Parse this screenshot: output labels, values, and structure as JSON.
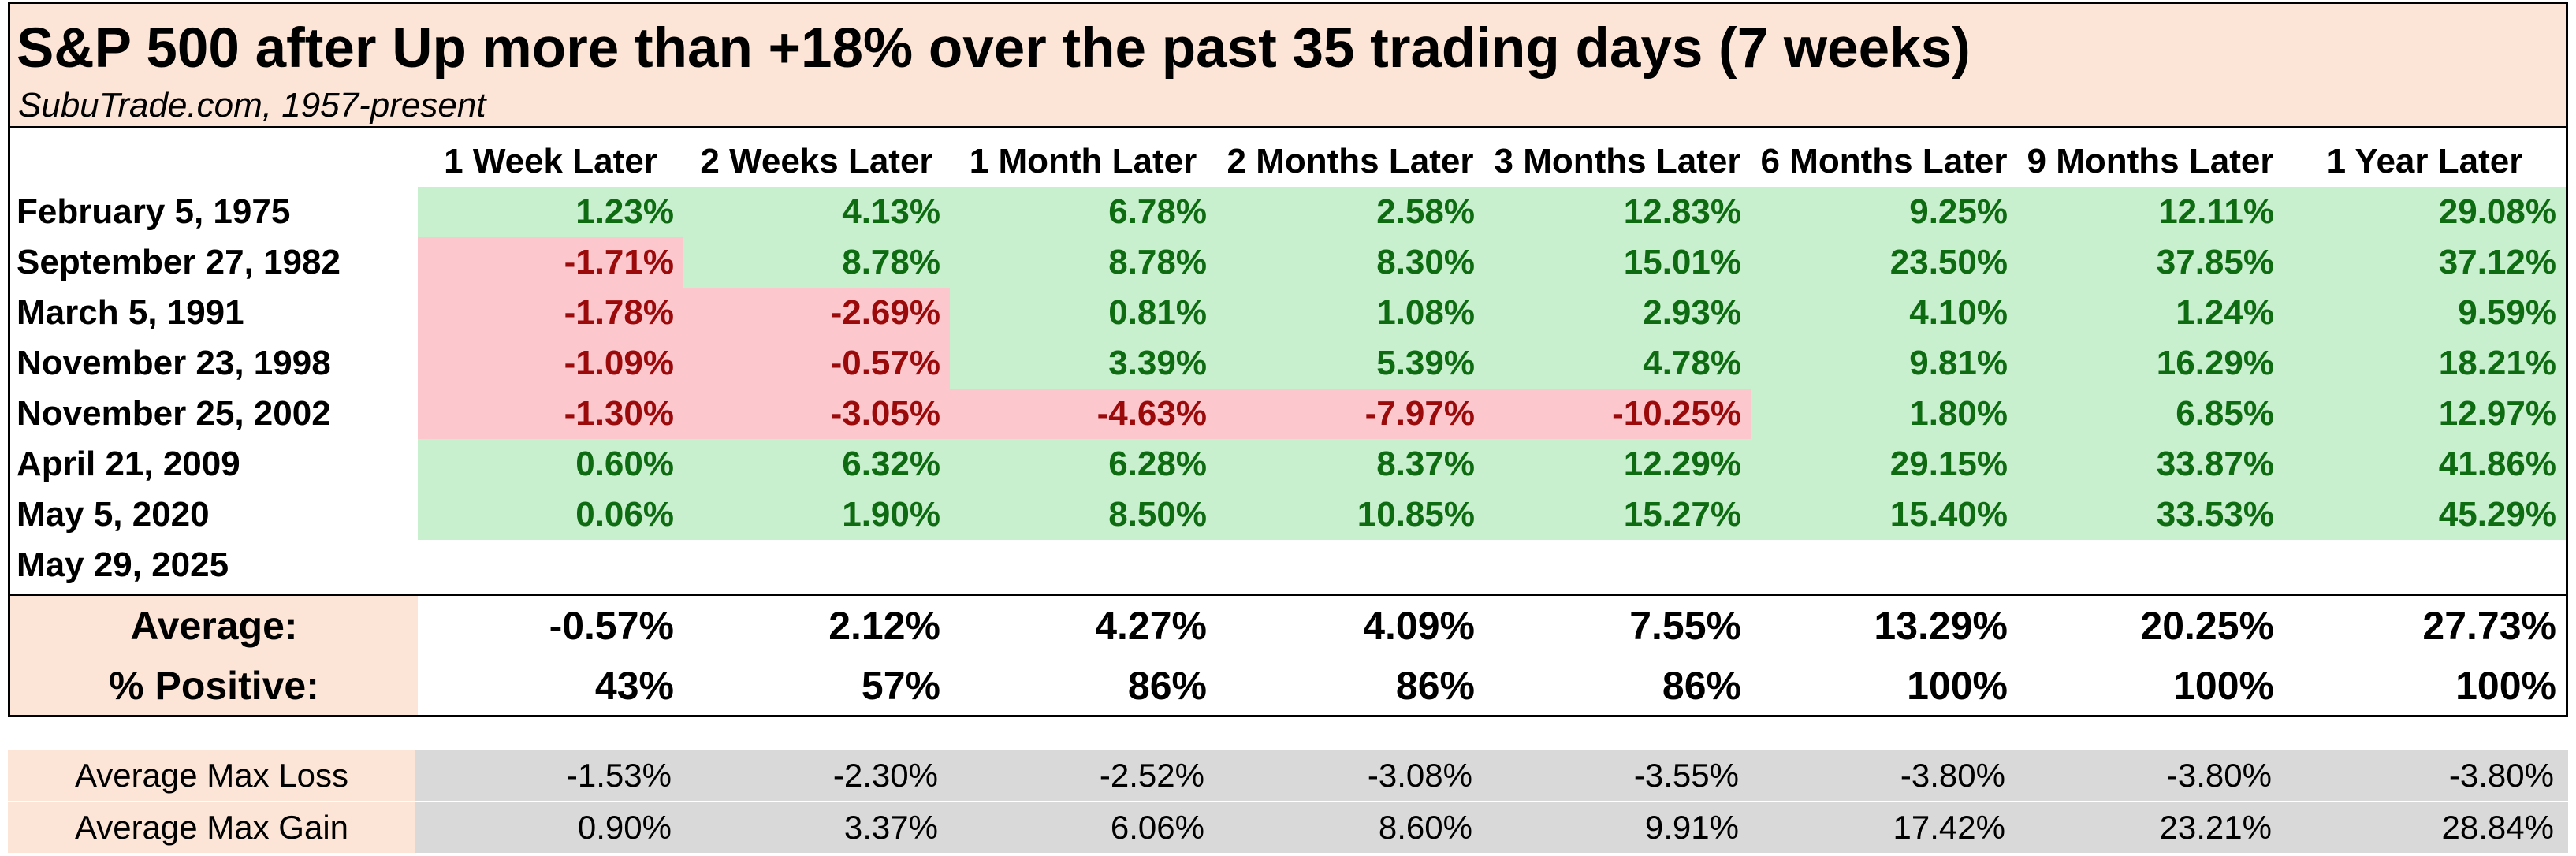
{
  "title": "S&P 500 after Up more than +18% over the past 35 trading days (7 weeks)",
  "subtitle": "SubuTrade.com, 1957-present",
  "columns": [
    "1 Week Later",
    "2 Weeks Later",
    "1 Month Later",
    "2 Months Later",
    "3 Months Later",
    "6 Months Later",
    "9 Months Later",
    "1 Year Later"
  ],
  "rows": [
    {
      "date": "February 5, 1975",
      "values": [
        "1.23%",
        "4.13%",
        "6.78%",
        "2.58%",
        "12.83%",
        "9.25%",
        "12.11%",
        "29.08%"
      ],
      "signs": [
        "pos",
        "pos",
        "pos",
        "pos",
        "pos",
        "pos",
        "pos",
        "pos"
      ]
    },
    {
      "date": "September 27, 1982",
      "values": [
        "-1.71%",
        "8.78%",
        "8.78%",
        "8.30%",
        "15.01%",
        "23.50%",
        "37.85%",
        "37.12%"
      ],
      "signs": [
        "neg",
        "pos",
        "pos",
        "pos",
        "pos",
        "pos",
        "pos",
        "pos"
      ]
    },
    {
      "date": "March 5, 1991",
      "values": [
        "-1.78%",
        "-2.69%",
        "0.81%",
        "1.08%",
        "2.93%",
        "4.10%",
        "1.24%",
        "9.59%"
      ],
      "signs": [
        "neg",
        "neg",
        "pos",
        "pos",
        "pos",
        "pos",
        "pos",
        "pos"
      ]
    },
    {
      "date": "November 23, 1998",
      "values": [
        "-1.09%",
        "-0.57%",
        "3.39%",
        "5.39%",
        "4.78%",
        "9.81%",
        "16.29%",
        "18.21%"
      ],
      "signs": [
        "neg",
        "neg",
        "pos",
        "pos",
        "pos",
        "pos",
        "pos",
        "pos"
      ]
    },
    {
      "date": "November 25, 2002",
      "values": [
        "-1.30%",
        "-3.05%",
        "-4.63%",
        "-7.97%",
        "-10.25%",
        "1.80%",
        "6.85%",
        "12.97%"
      ],
      "signs": [
        "neg",
        "neg",
        "neg",
        "neg",
        "neg",
        "pos",
        "pos",
        "pos"
      ]
    },
    {
      "date": "April 21, 2009",
      "values": [
        "0.60%",
        "6.32%",
        "6.28%",
        "8.37%",
        "12.29%",
        "29.15%",
        "33.87%",
        "41.86%"
      ],
      "signs": [
        "pos",
        "pos",
        "pos",
        "pos",
        "pos",
        "pos",
        "pos",
        "pos"
      ]
    },
    {
      "date": "May 5, 2020",
      "values": [
        "0.06%",
        "1.90%",
        "8.50%",
        "10.85%",
        "15.27%",
        "15.40%",
        "33.53%",
        "45.29%"
      ],
      "signs": [
        "pos",
        "pos",
        "pos",
        "pos",
        "pos",
        "pos",
        "pos",
        "pos"
      ]
    },
    {
      "date": "May 29, 2025",
      "values": [
        "",
        "",
        "",
        "",
        "",
        "",
        "",
        ""
      ],
      "signs": [
        "",
        "",
        "",
        "",
        "",
        "",
        "",
        ""
      ]
    }
  ],
  "summary": [
    {
      "label": "Average:",
      "values": [
        "-0.57%",
        "2.12%",
        "4.27%",
        "4.09%",
        "7.55%",
        "13.29%",
        "20.25%",
        "27.73%"
      ]
    },
    {
      "label": "% Positive:",
      "values": [
        "43%",
        "57%",
        "86%",
        "86%",
        "86%",
        "100%",
        "100%",
        "100%"
      ]
    }
  ],
  "extra": [
    {
      "label": "Average Max Loss",
      "values": [
        "-1.53%",
        "-2.30%",
        "-2.52%",
        "-3.08%",
        "-3.55%",
        "-3.80%",
        "-3.80%",
        "-3.80%"
      ]
    },
    {
      "label": "Average Max Gain",
      "values": [
        "0.90%",
        "3.37%",
        "6.06%",
        "8.60%",
        "9.91%",
        "17.42%",
        "23.21%",
        "28.84%"
      ]
    }
  ],
  "colors": {
    "positive_bg": "#c8efce",
    "positive_text": "#0f6b12",
    "negative_bg": "#fcc7cd",
    "negative_text": "#9b0a0a",
    "label_bg": "#fce5d6",
    "gray_bg": "#d9d9d9"
  }
}
